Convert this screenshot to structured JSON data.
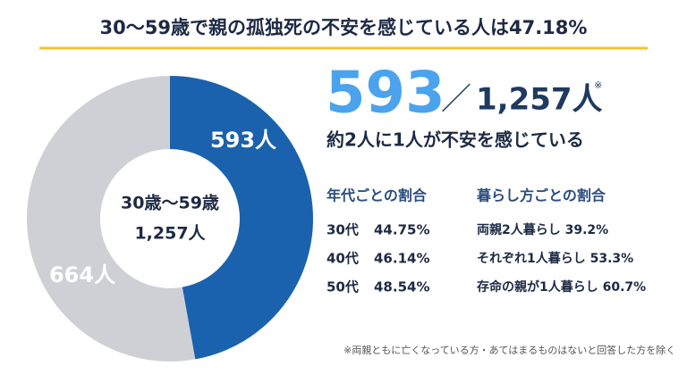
{
  "chart_data": {
    "type": "donut",
    "title": "30〜59歳で親の孤独死の不安を感じている人は47.18%",
    "center_label": [
      "30歳〜59歳",
      "1,257人"
    ],
    "categories": [
      null,
      null
    ],
    "values": [
      593,
      664
    ],
    "value_labels": [
      "593人",
      "664人"
    ],
    "colors": [
      "#1a62ad",
      "#cfd0d6"
    ]
  },
  "summary": {
    "count": "593",
    "slash": "／",
    "total": "1,257人",
    "mark": "※",
    "caption": "約2人に1人が不安を感じている"
  },
  "age_breakdown": {
    "title": "年代ごとの割合",
    "rows": [
      [
        "30代",
        "44.75%"
      ],
      [
        "40代",
        "46.14%"
      ],
      [
        "50代",
        "48.54%"
      ]
    ]
  },
  "living_breakdown": {
    "title": "暮らし方ごとの割合",
    "rows": [
      "両親2人暮らし 39.2%",
      "それぞれ1人暮らし 53.3%",
      "存命の親が1人暮らし 60.7%"
    ]
  },
  "footnote": "※両親ともに亡くなっている方・あてはまるものはないと回答した方を除く"
}
